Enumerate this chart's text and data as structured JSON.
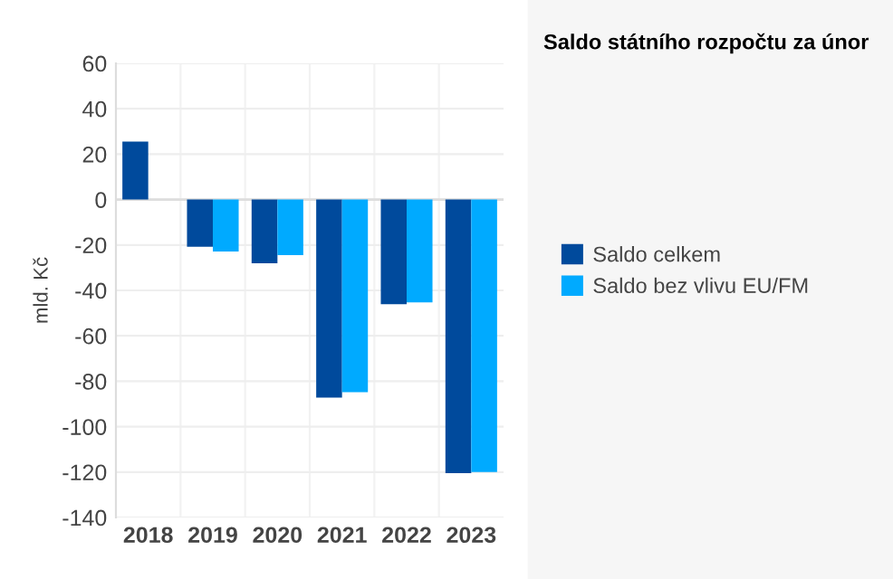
{
  "chart_data": {
    "type": "bar",
    "title": "Saldo státního rozpočtu za únor",
    "ylabel": "mld. Kč",
    "categories": [
      "2018",
      "2019",
      "2020",
      "2021",
      "2022",
      "2023"
    ],
    "series": [
      {
        "name": "Saldo celkem",
        "color": "#004a9c",
        "values": [
          25.5,
          -20.8,
          -28,
          -87.2,
          -46.1,
          -120.5
        ]
      },
      {
        "name": "Saldo bez vlivu EU/FM",
        "color": "#00aaff",
        "values": [
          null,
          -22.9,
          -24.5,
          -84.8,
          -45.3,
          -120
        ]
      }
    ],
    "ylim": [
      -140,
      60
    ],
    "yticks": [
      -140,
      -120,
      -100,
      -80,
      -60,
      -40,
      -20,
      0,
      20,
      40,
      60
    ],
    "grid": true,
    "legend": "right"
  }
}
